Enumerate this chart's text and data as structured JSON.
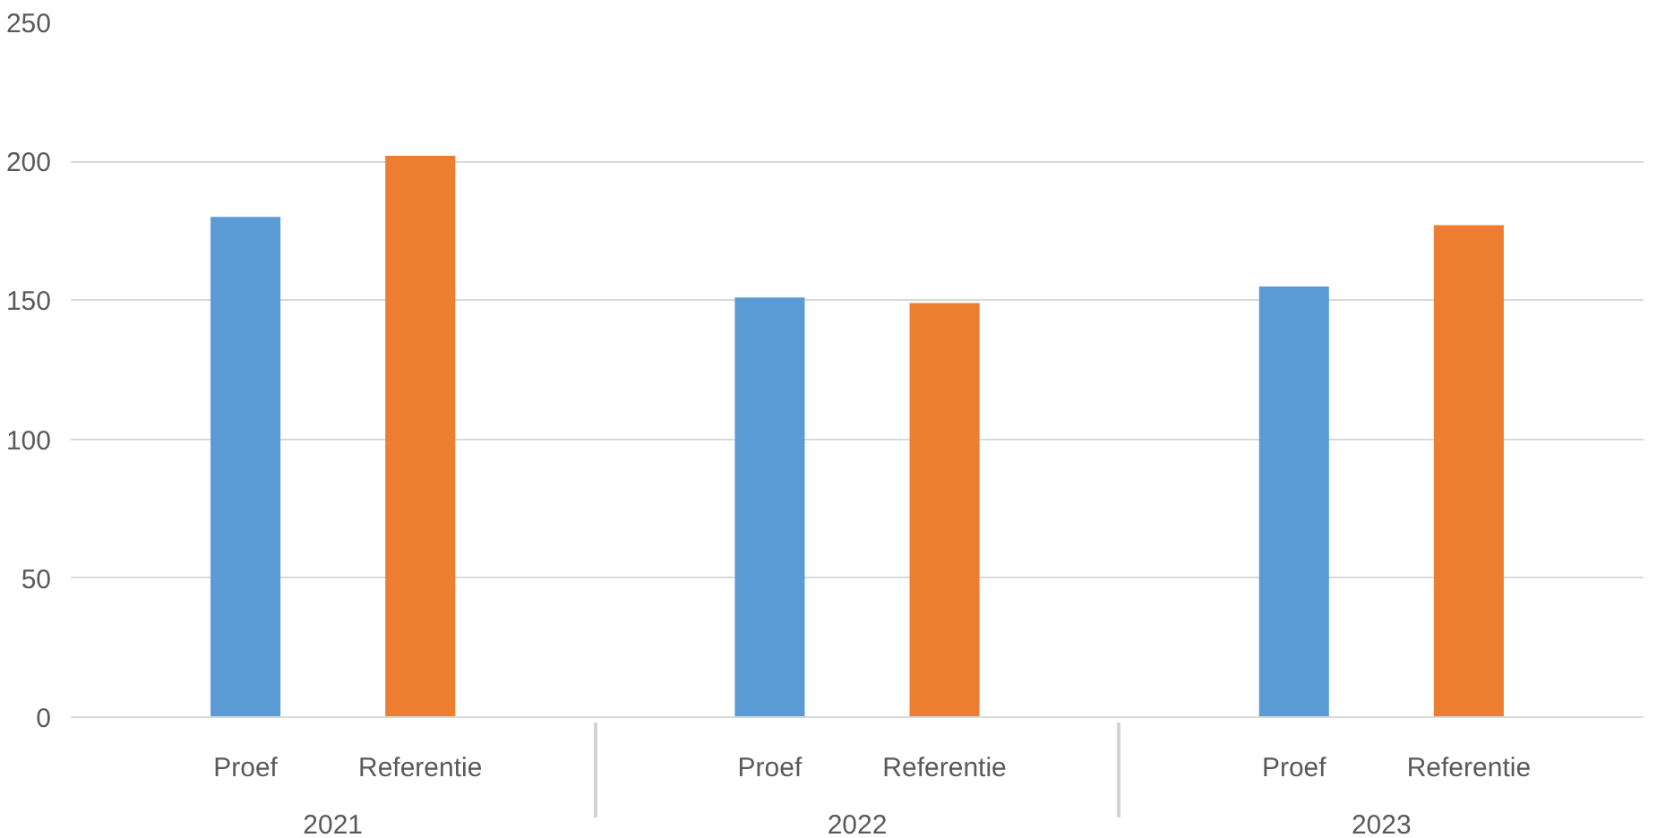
{
  "chart_data": {
    "type": "bar",
    "categories": [
      "2021",
      "2022",
      "2023"
    ],
    "series": [
      {
        "name": "Proef",
        "color": "#5b9bd5",
        "values": [
          180,
          151,
          155
        ]
      },
      {
        "name": "Referentie",
        "color": "#ed7d31",
        "values": [
          202,
          149,
          177
        ]
      }
    ],
    "ylim": [
      0,
      250
    ],
    "yticks": [
      0,
      50,
      100,
      150,
      200,
      250
    ],
    "grid": "y"
  }
}
